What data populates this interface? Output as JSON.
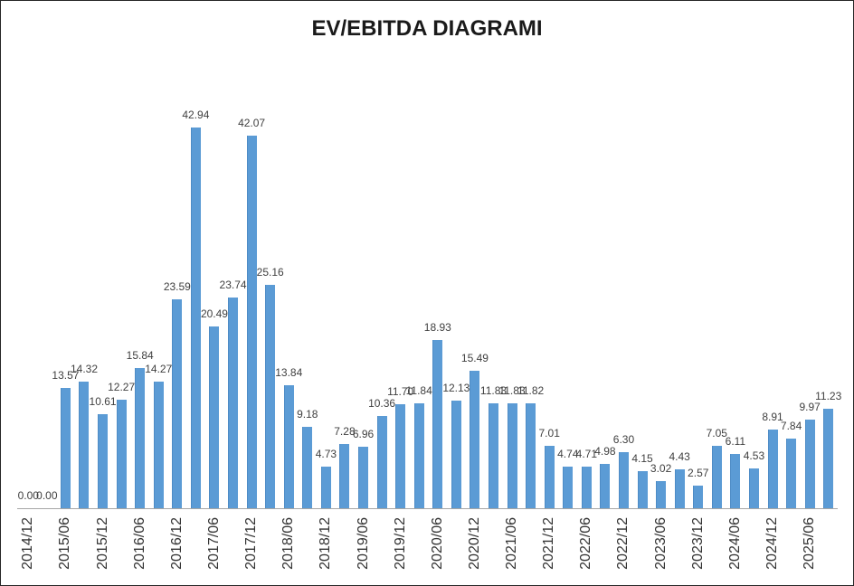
{
  "window": {
    "background_color": "#ffffff",
    "border_color": "#262626"
  },
  "chart_data": {
    "type": "bar",
    "title": "EV/EBITDA DIAGRAMI",
    "xlabel": "",
    "ylabel": "",
    "grid": "off",
    "legend": "none",
    "ylim": [
      0,
      45
    ],
    "bar_color": "#5B9BD5",
    "axis_line_color": "#a6a6a6",
    "value_label_color": "#404040",
    "tick_label_color": "#333333",
    "x_label_every_n_bars": 2,
    "x_tick_labels": [
      "2014/12",
      "2015/06",
      "2015/12",
      "2016/06",
      "2016/12",
      "2017/06",
      "2017/12",
      "2018/06",
      "2018/12",
      "2019/06",
      "2019/12",
      "2020/06",
      "2020/12",
      "2021/06",
      "2021/12",
      "2022/06",
      "2022/12",
      "2023/06",
      "2023/12",
      "2024/06",
      "2024/12",
      "2025/06"
    ],
    "values": [
      0.0,
      0.0,
      13.57,
      14.32,
      10.61,
      12.27,
      15.84,
      14.27,
      23.59,
      42.94,
      20.49,
      23.74,
      42.07,
      25.16,
      13.84,
      9.18,
      4.73,
      7.28,
      6.96,
      10.36,
      11.7,
      11.84,
      18.93,
      12.13,
      15.49,
      11.83,
      11.83,
      11.82,
      7.01,
      4.74,
      4.71,
      4.98,
      6.3,
      4.15,
      3.02,
      4.43,
      2.57,
      7.05,
      6.11,
      4.53,
      8.91,
      7.84,
      9.97,
      11.23
    ],
    "value_labels": [
      "0.00",
      "0.00",
      "13.57",
      "14.32",
      "10.61",
      "12.27",
      "15.84",
      "14.27",
      "23.59",
      "42.94",
      "20.49",
      "23.74",
      "42.07",
      "25.16",
      "13.84",
      "9.18",
      "4.73",
      "7.28",
      "6.96",
      "10.36",
      "11.70",
      "11.84",
      "18.93",
      "12.13",
      "15.49",
      "11.83",
      "11.83",
      "11.82",
      "7.01",
      "4.74",
      "4.71",
      "4.98",
      "6.30",
      "4.15",
      "3.02",
      "4.43",
      "2.57",
      "7.05",
      "6.11",
      "4.53",
      "8.91",
      "7.84",
      "9.97",
      "11.23"
    ]
  }
}
